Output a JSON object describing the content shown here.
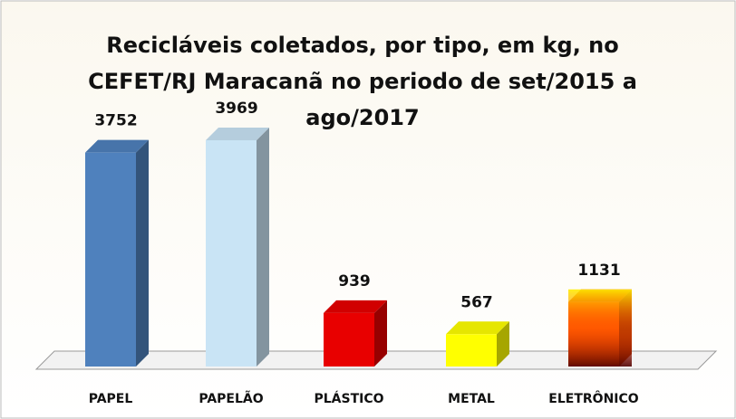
{
  "chart_data": {
    "type": "bar3d",
    "title": "Recicláveis coletados, por tipo, em kg, no CEFET/RJ Maracanã no periodo de set/2015 a ago/2017",
    "categories": [
      "PAPEL",
      "PAPELÃO",
      "PLÁSTICO",
      "METAL",
      "ELETRÔNICO"
    ],
    "values": [
      3752,
      3969,
      939,
      567,
      1131
    ],
    "colors": [
      "#4f81bd",
      "#c9e4f5",
      "#e80000",
      "#ffff00",
      "#ff6a00"
    ]
  }
}
